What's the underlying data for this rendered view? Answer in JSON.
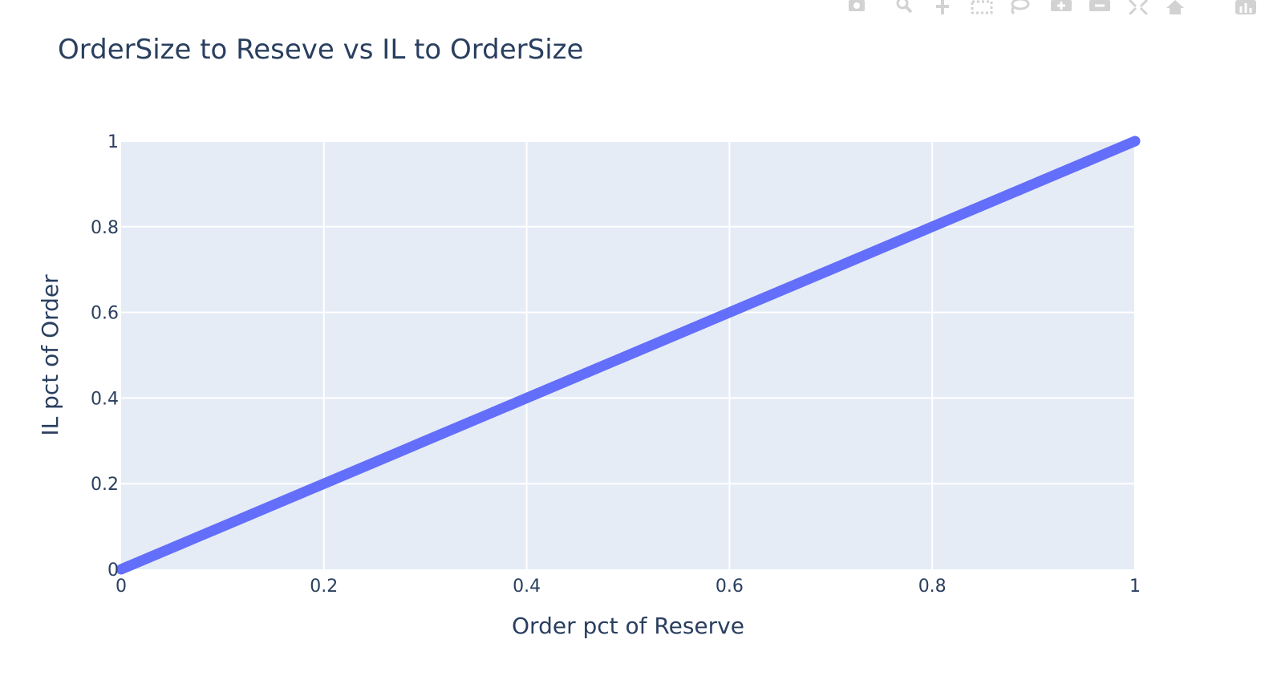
{
  "chart_data": {
    "type": "line",
    "title": "OrderSize to Reseve vs IL to OrderSize",
    "xlabel": "Order pct of Reserve",
    "ylabel": "IL pct of Order",
    "xlim": [
      0,
      1
    ],
    "ylim": [
      0,
      1
    ],
    "x_ticks": [
      "0",
      "0.2",
      "0.4",
      "0.6",
      "0.8",
      "1"
    ],
    "y_ticks": [
      "0",
      "0.2",
      "0.4",
      "0.6",
      "0.8",
      "1"
    ],
    "grid": true,
    "legend": "none",
    "series": [
      {
        "x": [
          0,
          0.1,
          0.2,
          0.3,
          0.4,
          0.5,
          0.6,
          0.7,
          0.8,
          0.9,
          1
        ],
        "y": [
          0,
          0.1,
          0.2,
          0.3,
          0.4,
          0.5,
          0.6,
          0.7,
          0.8,
          0.9,
          1
        ],
        "color": "#636efa"
      }
    ],
    "colors": {
      "plot_background": "#e5ecf6",
      "grid": "#ffffff",
      "text": "#2a3f5f",
      "line": "#636efa"
    }
  },
  "modebar": {
    "icons": [
      "camera-icon",
      "zoom-icon",
      "pan-icon",
      "box-select-icon",
      "lasso-select-icon",
      "zoom-in-icon",
      "zoom-out-icon",
      "autoscale-icon",
      "reset-axes-icon",
      "plotly-logo-icon"
    ]
  }
}
